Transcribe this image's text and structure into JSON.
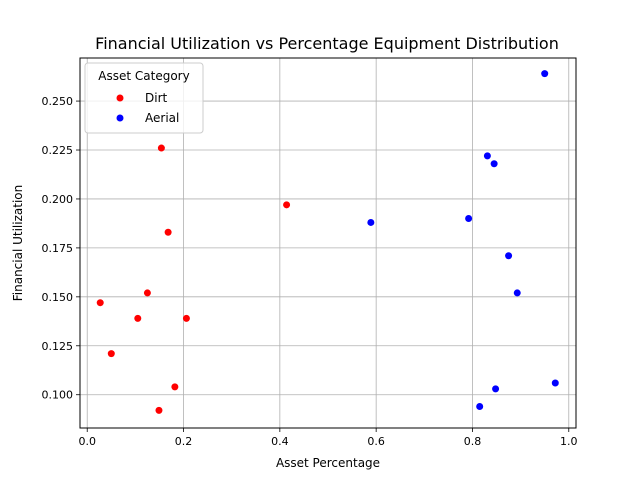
{
  "chart_data": {
    "type": "scatter",
    "title": "Financial Utilization vs Percentage Equipment Distribution",
    "xlabel": "Asset Percentage",
    "ylabel": "Financial Utilization",
    "xlim": [
      -0.015,
      1.015
    ],
    "ylim": [
      0.083,
      0.272
    ],
    "xticks": [
      0.0,
      0.2,
      0.4,
      0.6,
      0.8,
      1.0
    ],
    "xtick_labels": [
      "0.0",
      "0.2",
      "0.4",
      "0.6",
      "0.8",
      "1.0"
    ],
    "yticks": [
      0.1,
      0.125,
      0.15,
      0.175,
      0.2,
      0.225,
      0.25
    ],
    "ytick_labels": [
      "0.100",
      "0.125",
      "0.150",
      "0.175",
      "0.200",
      "0.225",
      "0.250"
    ],
    "grid": true,
    "legend": {
      "title": "Asset Category",
      "position": "upper-left"
    },
    "series": [
      {
        "name": "Dirt",
        "color": "#ff0000",
        "points": [
          [
            0.154,
            0.226
          ],
          [
            0.414,
            0.197
          ],
          [
            0.168,
            0.183
          ],
          [
            0.125,
            0.152
          ],
          [
            0.027,
            0.147
          ],
          [
            0.105,
            0.139
          ],
          [
            0.206,
            0.139
          ],
          [
            0.05,
            0.121
          ],
          [
            0.182,
            0.104
          ],
          [
            0.149,
            0.092
          ]
        ]
      },
      {
        "name": "Aerial",
        "color": "#0000ff",
        "points": [
          [
            0.95,
            0.264
          ],
          [
            0.831,
            0.222
          ],
          [
            0.845,
            0.218
          ],
          [
            0.589,
            0.188
          ],
          [
            0.792,
            0.19
          ],
          [
            0.875,
            0.171
          ],
          [
            0.893,
            0.152
          ],
          [
            0.972,
            0.106
          ],
          [
            0.848,
            0.103
          ],
          [
            0.815,
            0.094
          ]
        ]
      }
    ]
  }
}
